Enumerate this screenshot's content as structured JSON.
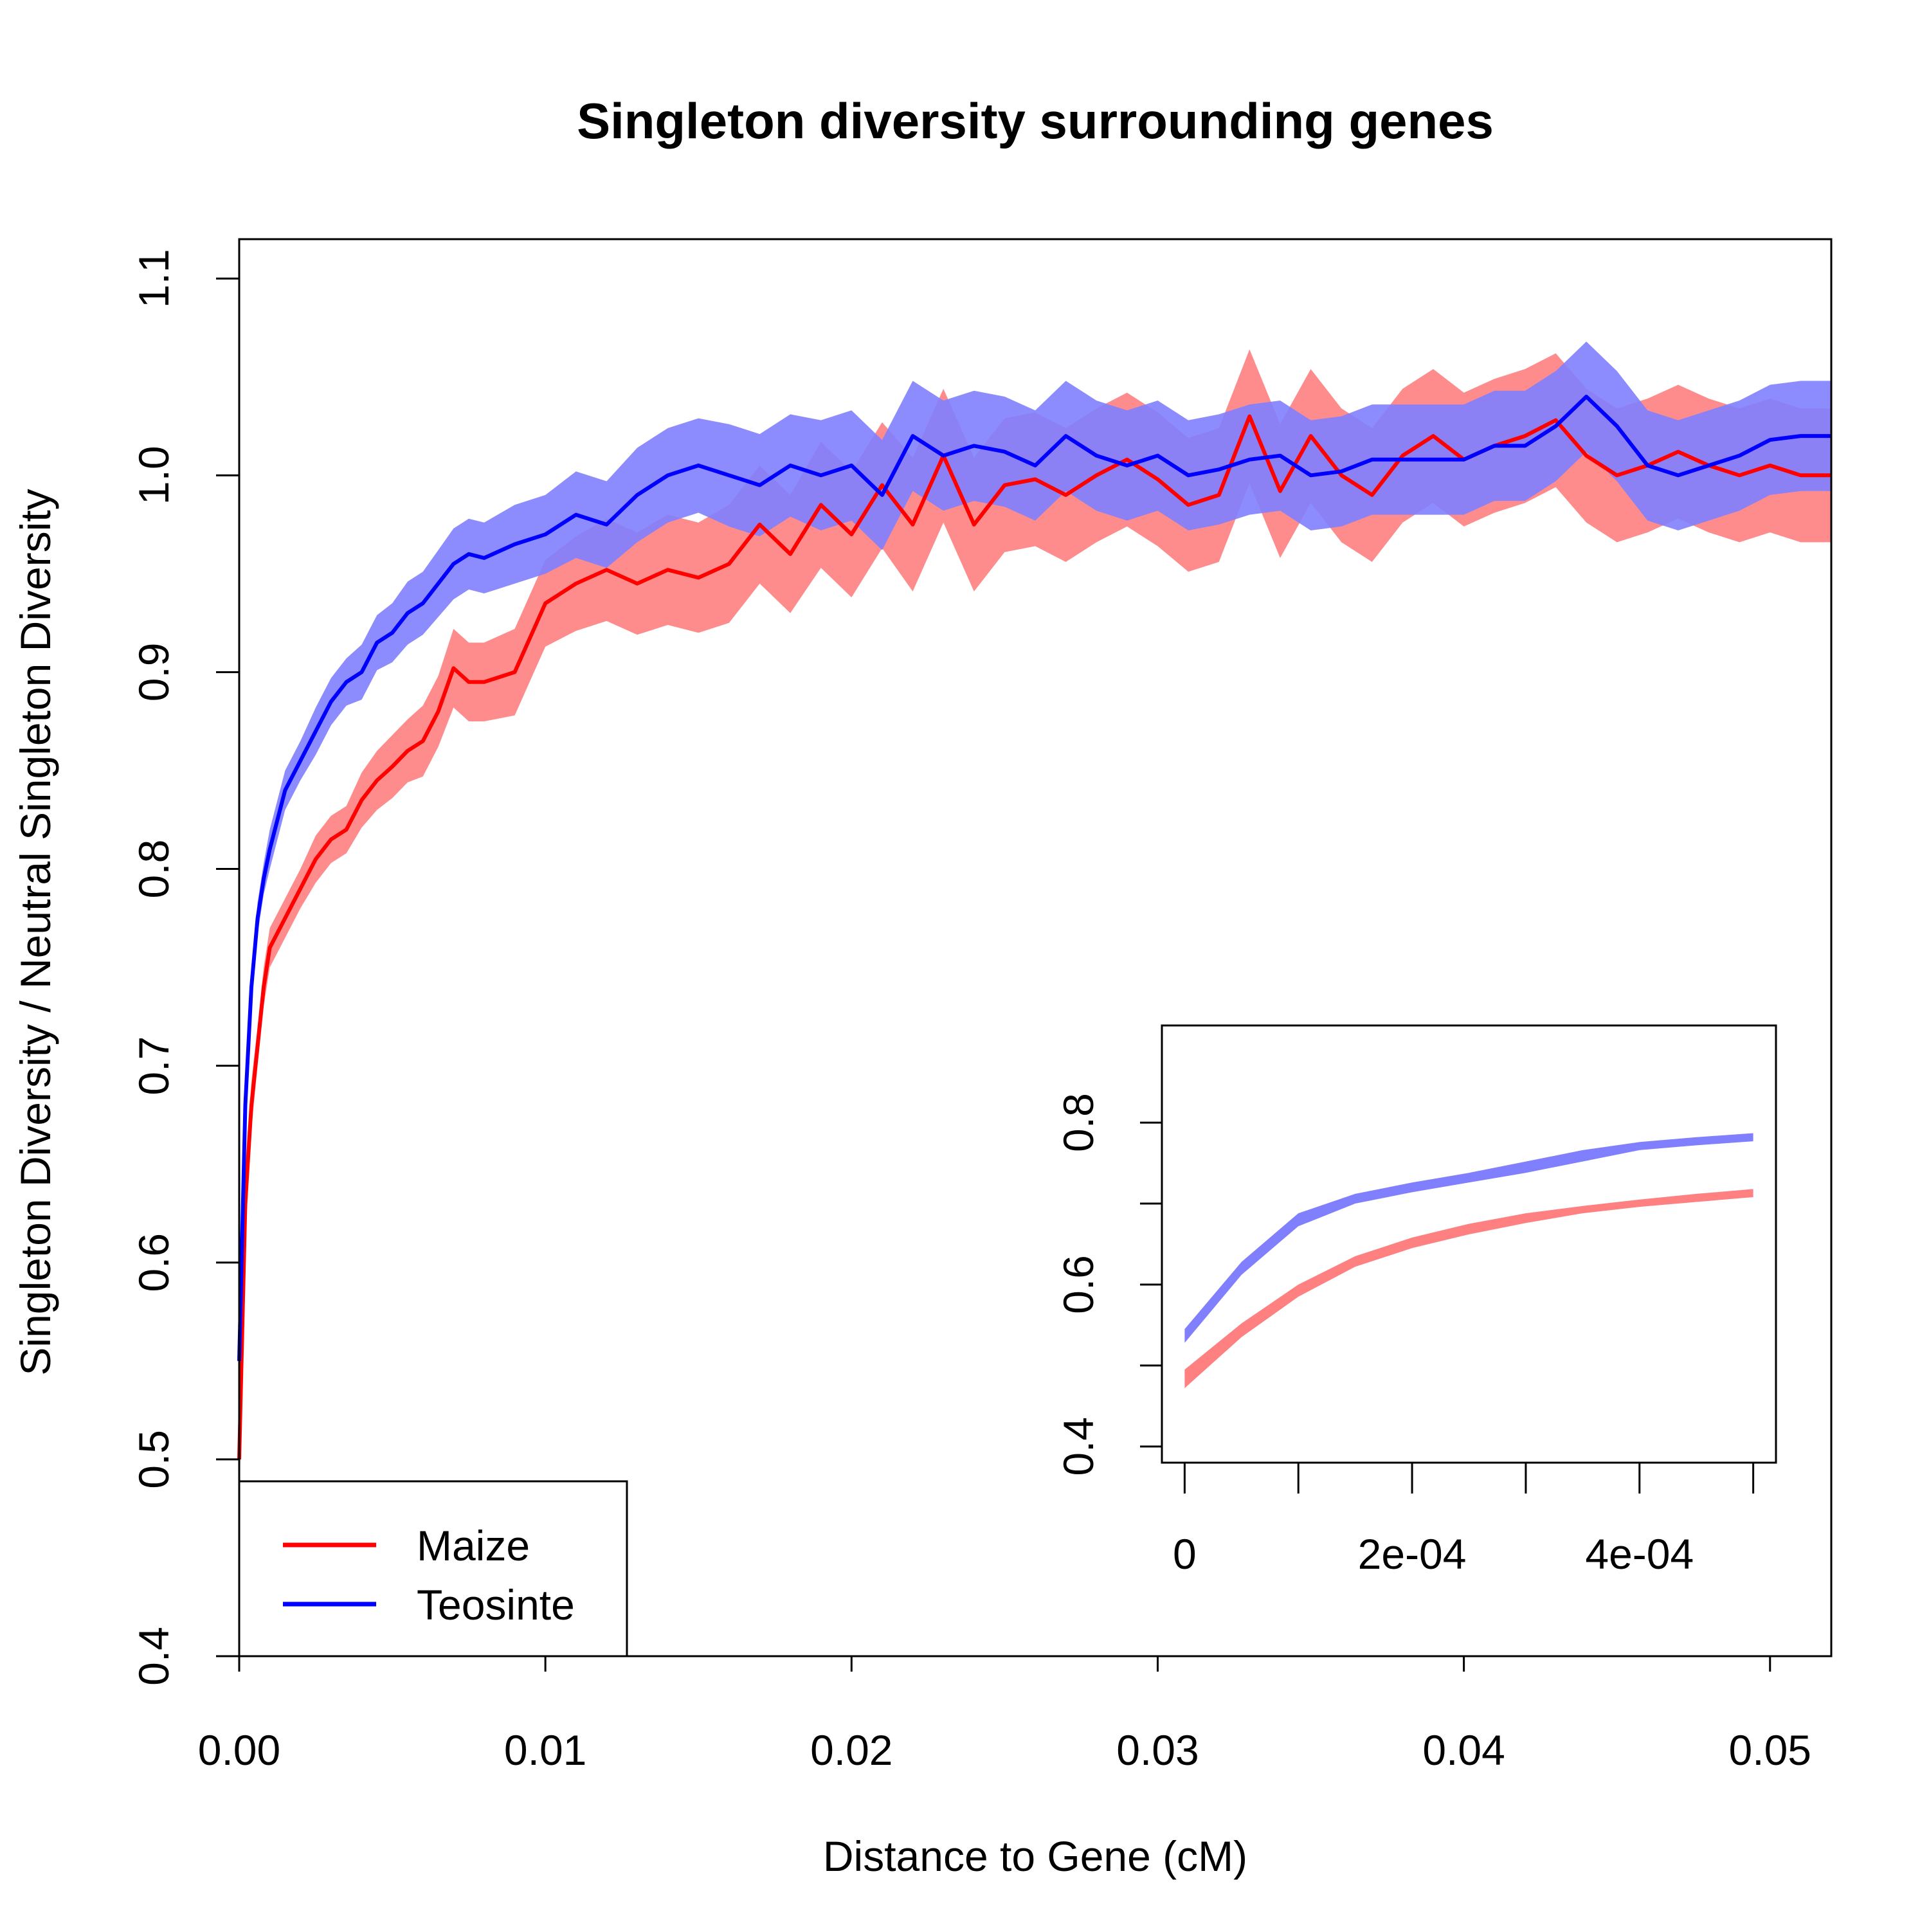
{
  "chart_data": [
    {
      "type": "line",
      "title": "Singleton diversity surrounding genes",
      "xlabel": "Distance to Gene (cM)",
      "ylabel": "Singleton Diversity / Neutral Singleton Diversity",
      "xlim": [
        0,
        0.052
      ],
      "ylim": [
        0.4,
        1.12
      ],
      "x_ticks": [
        "0.00",
        "0.01",
        "0.02",
        "0.03",
        "0.04",
        "0.05"
      ],
      "y_ticks": [
        "0.4",
        "0.5",
        "0.6",
        "0.7",
        "0.8",
        "0.9",
        "1.0",
        "1.1"
      ],
      "legend": {
        "position": "bottom-left",
        "entries": [
          "Maize",
          "Teosinte"
        ]
      },
      "grid": false,
      "series": [
        {
          "name": "Maize",
          "color": "#ff0000",
          "band_color": "#ff8080",
          "x": [
            0,
            0.0002,
            0.0004,
            0.0006,
            0.0008,
            0.001,
            0.0015,
            0.002,
            0.0025,
            0.003,
            0.0035,
            0.004,
            0.0045,
            0.005,
            0.0055,
            0.006,
            0.0065,
            0.007,
            0.0075,
            0.008,
            0.009,
            0.01,
            0.011,
            0.012,
            0.013,
            0.014,
            0.015,
            0.016,
            0.017,
            0.018,
            0.019,
            0.02,
            0.021,
            0.022,
            0.023,
            0.024,
            0.025,
            0.026,
            0.027,
            0.028,
            0.029,
            0.03,
            0.031,
            0.032,
            0.033,
            0.034,
            0.035,
            0.036,
            0.037,
            0.038,
            0.039,
            0.04,
            0.041,
            0.042,
            0.043,
            0.044,
            0.045,
            0.046,
            0.047,
            0.048,
            0.049,
            0.05,
            0.051,
            0.052
          ],
          "y": [
            0.5,
            0.63,
            0.68,
            0.71,
            0.74,
            0.76,
            0.775,
            0.79,
            0.805,
            0.815,
            0.82,
            0.835,
            0.845,
            0.852,
            0.86,
            0.865,
            0.88,
            0.902,
            0.895,
            0.895,
            0.9,
            0.935,
            0.945,
            0.952,
            0.945,
            0.952,
            0.948,
            0.955,
            0.975,
            0.96,
            0.985,
            0.97,
            0.995,
            0.975,
            1.01,
            0.975,
            0.995,
            0.998,
            0.99,
            1.0,
            1.008,
            0.998,
            0.985,
            0.99,
            1.03,
            0.992,
            1.02,
            1.0,
            0.99,
            1.01,
            1.02,
            1.008,
            1.015,
            1.02,
            1.028,
            1.01,
            1.0,
            1.005,
            1.012,
            1.005,
            1.0,
            1.005,
            1.0,
            1.0
          ],
          "band_halfwidth": [
            0.025,
            0.02,
            0.012,
            0.01,
            0.01,
            0.01,
            0.01,
            0.01,
            0.012,
            0.012,
            0.012,
            0.014,
            0.015,
            0.016,
            0.016,
            0.018,
            0.018,
            0.02,
            0.02,
            0.02,
            0.022,
            0.022,
            0.024,
            0.026,
            0.026,
            0.028,
            0.028,
            0.03,
            0.03,
            0.03,
            0.032,
            0.032,
            0.032,
            0.034,
            0.034,
            0.034,
            0.034,
            0.034,
            0.034,
            0.034,
            0.034,
            0.034,
            0.034,
            0.034,
            0.034,
            0.034,
            0.034,
            0.034,
            0.034,
            0.034,
            0.034,
            0.034,
            0.034,
            0.034,
            0.034,
            0.034,
            0.034,
            0.034,
            0.034,
            0.034,
            0.034,
            0.034,
            0.034,
            0.034
          ]
        },
        {
          "name": "Teosinte",
          "color": "#0000ff",
          "band_color": "#8080ff",
          "x": [
            0,
            0.0002,
            0.0004,
            0.0006,
            0.0008,
            0.001,
            0.0015,
            0.002,
            0.0025,
            0.003,
            0.0035,
            0.004,
            0.0045,
            0.005,
            0.0055,
            0.006,
            0.0065,
            0.007,
            0.0075,
            0.008,
            0.009,
            0.01,
            0.011,
            0.012,
            0.013,
            0.014,
            0.015,
            0.016,
            0.017,
            0.018,
            0.019,
            0.02,
            0.021,
            0.022,
            0.023,
            0.024,
            0.025,
            0.026,
            0.027,
            0.028,
            0.029,
            0.03,
            0.031,
            0.032,
            0.033,
            0.034,
            0.035,
            0.036,
            0.037,
            0.038,
            0.039,
            0.04,
            0.041,
            0.042,
            0.043,
            0.044,
            0.045,
            0.046,
            0.047,
            0.048,
            0.049,
            0.05,
            0.051,
            0.052
          ],
          "y": [
            0.55,
            0.68,
            0.74,
            0.775,
            0.795,
            0.81,
            0.84,
            0.855,
            0.87,
            0.885,
            0.895,
            0.9,
            0.915,
            0.92,
            0.93,
            0.935,
            0.945,
            0.955,
            0.96,
            0.958,
            0.965,
            0.97,
            0.98,
            0.975,
            0.99,
            1.0,
            1.005,
            1.0,
            0.995,
            1.005,
            1.0,
            1.005,
            0.99,
            1.02,
            1.01,
            1.015,
            1.012,
            1.005,
            1.02,
            1.01,
            1.005,
            1.01,
            1.0,
            1.003,
            1.008,
            1.01,
            1.0,
            1.002,
            1.008,
            1.008,
            1.008,
            1.008,
            1.015,
            1.015,
            1.025,
            1.04,
            1.025,
            1.005,
            1.0,
            1.005,
            1.01,
            1.018,
            1.02,
            1.02
          ],
          "band_halfwidth": [
            0.02,
            0.015,
            0.01,
            0.008,
            0.008,
            0.01,
            0.01,
            0.01,
            0.012,
            0.012,
            0.012,
            0.014,
            0.014,
            0.015,
            0.016,
            0.016,
            0.017,
            0.018,
            0.018,
            0.018,
            0.02,
            0.02,
            0.022,
            0.022,
            0.024,
            0.024,
            0.024,
            0.026,
            0.026,
            0.026,
            0.028,
            0.028,
            0.028,
            0.028,
            0.028,
            0.028,
            0.028,
            0.028,
            0.028,
            0.028,
            0.028,
            0.028,
            0.028,
            0.028,
            0.028,
            0.028,
            0.028,
            0.028,
            0.028,
            0.028,
            0.028,
            0.028,
            0.028,
            0.028,
            0.028,
            0.028,
            0.028,
            0.028,
            0.028,
            0.028,
            0.028,
            0.028,
            0.028,
            0.028
          ]
        }
      ]
    },
    {
      "type": "area",
      "title": "",
      "xlabel": "",
      "ylabel": "",
      "xlim": [
        -2e-05,
        0.00052
      ],
      "ylim": [
        0.38,
        0.92
      ],
      "x_ticks": [
        "0",
        "2e-04",
        "4e-04"
      ],
      "x_tick_values": [
        0,
        0.0002,
        0.0004
      ],
      "x_minor_tick_values": [
        0,
        0.0001,
        0.0002,
        0.0003,
        0.0004,
        0.0005
      ],
      "y_ticks": [
        "0.4",
        "0.6",
        "0.8"
      ],
      "y_tick_values": [
        0.4,
        0.5,
        0.6,
        0.7,
        0.8
      ],
      "y_labeled_values": [
        0.4,
        0.6,
        0.8
      ],
      "series": [
        {
          "name": "Maize",
          "color": "#ff8080",
          "x": [
            0,
            5e-05,
            0.0001,
            0.00015,
            0.0002,
            0.00025,
            0.0003,
            0.00035,
            0.0004,
            0.00045,
            0.0005
          ],
          "lower": [
            0.472,
            0.535,
            0.585,
            0.622,
            0.645,
            0.662,
            0.676,
            0.688,
            0.696,
            0.702,
            0.708
          ],
          "upper": [
            0.495,
            0.552,
            0.6,
            0.635,
            0.658,
            0.675,
            0.688,
            0.697,
            0.705,
            0.712,
            0.718
          ]
        },
        {
          "name": "Teosinte",
          "color": "#8080ff",
          "x": [
            0,
            5e-05,
            0.0001,
            0.00015,
            0.0002,
            0.00025,
            0.0003,
            0.00035,
            0.0004,
            0.00045,
            0.0005
          ],
          "lower": [
            0.528,
            0.612,
            0.672,
            0.7,
            0.714,
            0.726,
            0.738,
            0.752,
            0.766,
            0.772,
            0.777
          ],
          "upper": [
            0.545,
            0.628,
            0.688,
            0.712,
            0.726,
            0.738,
            0.752,
            0.766,
            0.776,
            0.782,
            0.787
          ]
        }
      ]
    }
  ]
}
